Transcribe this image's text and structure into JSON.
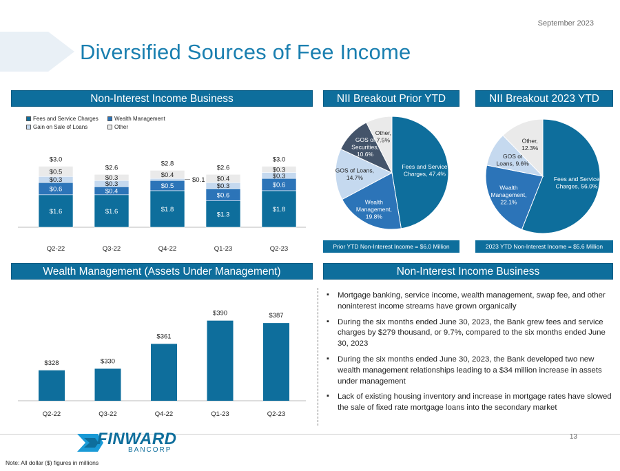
{
  "date": "September 2023",
  "title": "Diversified Sources of Fee Income",
  "headers": {
    "nii_business_top": "Non-Interest Income Business",
    "nii_prior": "NII Breakout Prior YTD",
    "nii_2023": "NII Breakout 2023 YTD",
    "wealth": "Wealth Management (Assets Under Management)",
    "nii_business_bottom": "Non-Interest Income Business"
  },
  "legend": [
    "Fees and Service Charges",
    "Wealth Management",
    "Gain on Sale of Loans",
    "Other"
  ],
  "colors": {
    "fees": "#0e6e9c",
    "wealth": "#2c74b8",
    "gain": "#c5d9ef",
    "other": "#eaeaea",
    "gos_sec": "#44546a"
  },
  "chart_data": [
    {
      "type": "stacked-bar",
      "title": "Non-Interest Income Business",
      "categories": [
        "Q2-22",
        "Q3-22",
        "Q4-22",
        "Q1-23",
        "Q2-23"
      ],
      "series": [
        {
          "name": "Fees and Service Charges",
          "values": [
            1.6,
            1.6,
            1.8,
            1.3,
            1.8
          ],
          "labels": [
            "$1.6",
            "$1.6",
            "$1.8",
            "$1.3",
            "$1.8"
          ]
        },
        {
          "name": "Wealth Management",
          "values": [
            0.6,
            0.4,
            0.5,
            0.6,
            0.6
          ],
          "labels": [
            "$0.6",
            "$0.4",
            "$0.5",
            "$0.6",
            "$0.6"
          ]
        },
        {
          "name": "Gain on Sale of Loans",
          "values": [
            0.3,
            0.3,
            0.1,
            0.3,
            0.3
          ],
          "labels": [
            "$0.3",
            "$0.3",
            "$0.1",
            "$0.3",
            "$0.3"
          ]
        },
        {
          "name": "Other",
          "values": [
            0.5,
            0.3,
            0.4,
            0.4,
            0.3
          ],
          "labels": [
            "$0.5",
            "$0.3",
            "$0.4",
            "$0.4",
            "$0.3"
          ]
        }
      ],
      "totals": [
        "$3.0",
        "$2.6",
        "$2.8",
        "$2.6",
        "$3.0"
      ],
      "ylim": [
        0,
        3.2
      ]
    },
    {
      "type": "pie",
      "title": "NII Breakout Prior YTD",
      "slices": [
        {
          "name": "Fees and Service Charges",
          "value": 47.4,
          "label": [
            "Fees and Service",
            "Charges, 47.4%"
          ]
        },
        {
          "name": "Wealth Management",
          "value": 19.8,
          "label": [
            "Wealth",
            "Management,",
            "19.8%"
          ]
        },
        {
          "name": "GOS of Loans",
          "value": 14.7,
          "label": [
            "GOS of Loans,",
            "14.7%"
          ]
        },
        {
          "name": "GOS of Securities",
          "value": 10.6,
          "label": [
            "GOS of",
            "Securities,",
            "10.6%"
          ]
        },
        {
          "name": "Other",
          "value": 7.5,
          "label": [
            "Other,",
            "7.5%"
          ]
        }
      ],
      "note": "Prior YTD Non-Interest Income = $6.0 Million"
    },
    {
      "type": "pie",
      "title": "NII Breakout 2023 YTD",
      "slices": [
        {
          "name": "Fees and Service Charges",
          "value": 56.0,
          "label": [
            "Fees and Service",
            "Charges, 56.0%"
          ]
        },
        {
          "name": "Wealth Management",
          "value": 22.1,
          "label": [
            "Wealth",
            "Management,",
            "22.1%"
          ]
        },
        {
          "name": "GOS of Loans",
          "value": 9.6,
          "label": [
            "GOS of",
            "Loans, 9.6%"
          ]
        },
        {
          "name": "Other",
          "value": 12.3,
          "label": [
            "Other,",
            "12.3%"
          ]
        }
      ],
      "note": "2023 YTD Non-Interest Income = $5.6 Million"
    },
    {
      "type": "bar",
      "title": "Wealth Management (Assets Under Management)",
      "categories": [
        "Q2-22",
        "Q3-22",
        "Q4-22",
        "Q1-23",
        "Q2-23"
      ],
      "values": [
        328,
        330,
        361,
        390,
        387
      ],
      "labels": [
        "$328",
        "$330",
        "$361",
        "$390",
        "$387"
      ],
      "ylim": [
        290,
        400
      ]
    }
  ],
  "bullets": [
    "Mortgage banking, service income, wealth management, swap fee, and other noninterest income streams have grown organically",
    "During the six months ended June 30, 2023, the Bank grew fees and service charges by $279 thousand, or 9.7%, compared to the six months ended June 30, 2023",
    "During the six months ended June 30, 2023, the Bank developed two new wealth management relationships leading to a $34 million increase in assets under management",
    "Lack of existing housing inventory and increase in mortgage rates have slowed the sale of fixed rate mortgage loans into the secondary market"
  ],
  "logo": {
    "name": "FINWARD",
    "sub": "BANCORP"
  },
  "page_number": "13",
  "footnote": "Note: All dollar ($) figures in millions"
}
